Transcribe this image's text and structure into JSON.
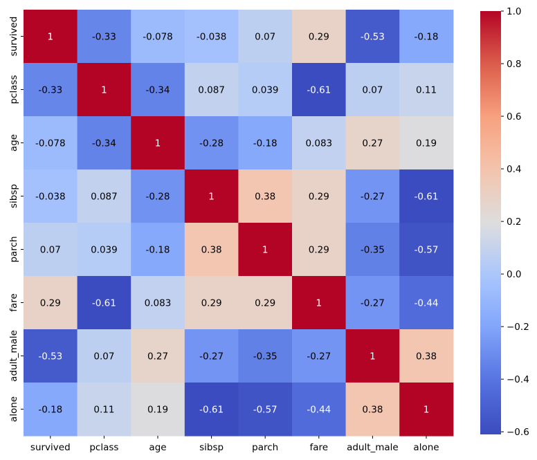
{
  "chart_data": {
    "type": "heatmap",
    "title": "",
    "xlabel": "",
    "ylabel": "",
    "x_categories": [
      "survived",
      "pclass",
      "age",
      "sibsp",
      "parch",
      "fare",
      "adult_male",
      "alone"
    ],
    "y_categories": [
      "survived",
      "pclass",
      "age",
      "sibsp",
      "parch",
      "fare",
      "adult_male",
      "alone"
    ],
    "values": [
      [
        1,
        -0.33,
        -0.078,
        -0.038,
        0.07,
        0.29,
        -0.53,
        -0.18
      ],
      [
        -0.33,
        1,
        -0.34,
        0.087,
        0.039,
        -0.61,
        0.07,
        0.11
      ],
      [
        -0.078,
        -0.34,
        1,
        -0.28,
        -0.18,
        0.083,
        0.27,
        0.19
      ],
      [
        -0.038,
        0.087,
        -0.28,
        1,
        0.38,
        0.29,
        -0.27,
        -0.61
      ],
      [
        0.07,
        0.039,
        -0.18,
        0.38,
        1,
        0.29,
        -0.35,
        -0.57
      ],
      [
        0.29,
        -0.61,
        0.083,
        0.29,
        0.29,
        1,
        -0.27,
        -0.44
      ],
      [
        -0.53,
        0.07,
        0.27,
        -0.27,
        -0.35,
        -0.27,
        1,
        0.38
      ],
      [
        -0.18,
        0.11,
        0.19,
        -0.61,
        -0.57,
        -0.44,
        0.38,
        1
      ]
    ],
    "colormap": "coolwarm",
    "vmin": -0.61,
    "vmax": 1,
    "colorbar": {
      "ticks": [
        -0.6,
        -0.4,
        -0.2,
        0.0,
        0.2,
        0.4,
        0.6,
        0.8,
        1.0
      ],
      "tick_labels": [
        "−0.6",
        "−0.4",
        "−0.2",
        "0.0",
        "0.2",
        "0.4",
        "0.6",
        "0.8",
        "1.0"
      ]
    },
    "annot": true
  }
}
